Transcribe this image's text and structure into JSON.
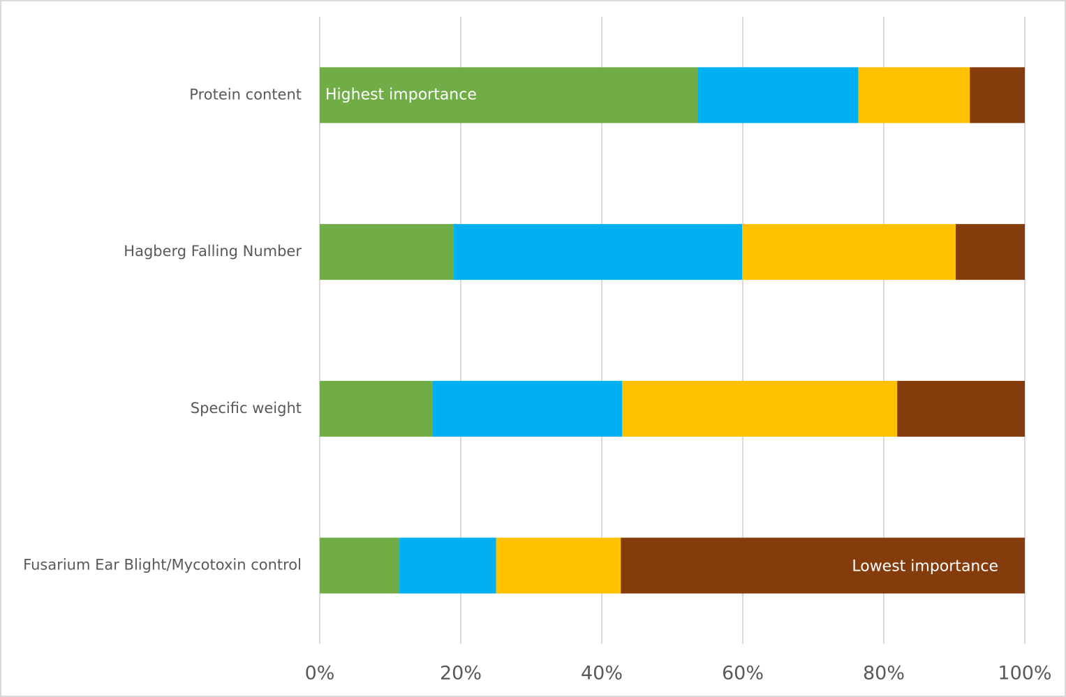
{
  "chart_data": {
    "type": "stacked-barh",
    "categories": [
      "Protein content",
      "Hagberg Falling Number",
      "Specific weight",
      "Fusarium Ear Blight/Mycotoxin control"
    ],
    "series": [
      {
        "color": "#70ad47",
        "values": [
          53.6,
          19.0,
          16.0,
          11.3
        ]
      },
      {
        "color": "#00b0f0",
        "values": [
          22.8,
          40.9,
          26.9,
          13.7
        ]
      },
      {
        "color": "#ffc000",
        "values": [
          15.8,
          30.3,
          39.0,
          17.7
        ]
      },
      {
        "color": "#843c0c",
        "values": [
          7.8,
          9.8,
          18.1,
          57.3
        ]
      }
    ],
    "xlim": [
      0,
      100
    ],
    "xticks": [
      {
        "value": 0,
        "label": "0%"
      },
      {
        "value": 20,
        "label": "20%"
      },
      {
        "value": 40,
        "label": "40%"
      },
      {
        "value": 60,
        "label": "60%"
      },
      {
        "value": 80,
        "label": "80%"
      },
      {
        "value": 100,
        "label": "100%"
      }
    ],
    "grid": true,
    "annotations": [
      "Highest importance",
      "Lowest importance"
    ]
  }
}
